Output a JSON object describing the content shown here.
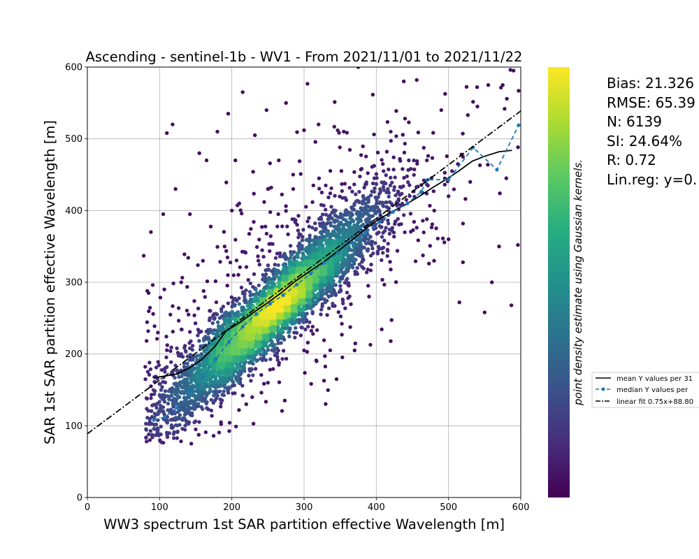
{
  "chart_data": {
    "type": "scatter",
    "title": "Ascending - sentinel-1b - WV1 - From 2021/11/01 to 2021/11/22",
    "xlabel": "WW3 spectrum 1st SAR partition effective Wavelength [m]",
    "ylabel": "SAR 1st SAR partition effective Wavelength [m]",
    "xlim": [
      0,
      600
    ],
    "ylim": [
      0,
      600
    ],
    "x_ticks": [
      "0",
      "100",
      "200",
      "300",
      "400",
      "500",
      "600"
    ],
    "y_ticks": [
      "0",
      "100",
      "200",
      "300",
      "400",
      "500",
      "600"
    ],
    "grid": true,
    "colorbar": {
      "label": "point density estimate using Gaussian kernels.",
      "colormap": "viridis",
      "colors": [
        "#440154",
        "#472d7b",
        "#3b528b",
        "#2c728e",
        "#21918c",
        "#28ae80",
        "#5ec962",
        "#addc30",
        "#fde725"
      ]
    },
    "point_count": 6139,
    "point_cloud": {
      "description_points": [
        [
          82,
          78
        ],
        [
          85,
          88
        ],
        [
          78,
          337
        ],
        [
          88,
          370
        ],
        [
          110,
          508
        ],
        [
          105,
          395
        ],
        [
          122,
          430
        ],
        [
          118,
          520
        ],
        [
          165,
          470
        ],
        [
          142,
          395
        ],
        [
          155,
          480
        ],
        [
          180,
          510
        ],
        [
          195,
          535
        ],
        [
          215,
          565
        ],
        [
          205,
          470
        ],
        [
          232,
          505
        ],
        [
          248,
          540
        ],
        [
          265,
          470
        ],
        [
          275,
          550
        ],
        [
          300,
          512
        ],
        [
          320,
          520
        ],
        [
          355,
          510
        ],
        [
          375,
          600
        ],
        [
          420,
          510
        ],
        [
          438,
          580
        ],
        [
          456,
          582
        ],
        [
          490,
          540
        ],
        [
          520,
          475
        ],
        [
          540,
          545
        ],
        [
          555,
          575
        ],
        [
          575,
          575
        ],
        [
          590,
          595
        ],
        [
          597,
          567
        ],
        [
          596,
          352
        ],
        [
          587,
          268
        ],
        [
          570,
          350
        ],
        [
          560,
          300
        ],
        [
          520,
          328
        ],
        [
          515,
          272
        ],
        [
          550,
          258
        ],
        [
          470,
          388
        ],
        [
          420,
          218
        ],
        [
          402,
          340
        ],
        [
          390,
          280
        ],
        [
          345,
          165
        ],
        [
          370,
          205
        ],
        [
          300,
          205
        ],
        [
          250,
          160
        ],
        [
          220,
          130
        ],
        [
          185,
          105
        ],
        [
          150,
          95
        ],
        [
          140,
          103
        ],
        [
          125,
          92
        ],
        [
          160,
          175
        ],
        [
          170,
          150
        ],
        [
          130,
          200
        ],
        [
          480,
          330
        ],
        [
          500,
          360
        ],
        [
          505,
          455
        ],
        [
          530,
          440
        ],
        [
          580,
          445
        ],
        [
          500,
          420
        ],
        [
          470,
          470
        ],
        [
          445,
          470
        ],
        [
          410,
          455
        ],
        [
          330,
          435
        ],
        [
          285,
          430
        ],
        [
          250,
          430
        ],
        [
          200,
          400
        ],
        [
          190,
          350
        ],
        [
          160,
          330
        ],
        [
          130,
          300
        ],
        [
          115,
          255
        ],
        [
          140,
          255
        ],
        [
          170,
          250
        ]
      ]
    },
    "series": [
      {
        "name": "mean Y values per 31",
        "style": "solid",
        "color": "#000000",
        "x": [
          92,
          106,
          123,
          140,
          158,
          176,
          192,
          211,
          230,
          249,
          268,
          287,
          306,
          325,
          345,
          364,
          383,
          402,
          421,
          440,
          460,
          478,
          496,
          514,
          533,
          551,
          570,
          588
        ],
        "y": [
          167,
          169,
          172,
          180,
          192,
          210,
          232,
          244,
          258,
          271,
          285,
          301,
          314,
          327,
          342,
          357,
          373,
          387,
          398,
          408,
          420,
          432,
          443,
          455,
          469,
          476,
          482,
          484
        ]
      },
      {
        "name": "median Y values per",
        "style": "dashed-markers",
        "color": "#1f77b4",
        "x": [
          92,
          107,
          124,
          142,
          160,
          178,
          196,
          215,
          234,
          253,
          271,
          290,
          309,
          328,
          347,
          366,
          385,
          404,
          423,
          443,
          462,
          471,
          500,
          534,
          567,
          597
        ],
        "y": [
          108,
          112,
          125,
          145,
          168,
          193,
          217,
          238,
          256,
          270,
          282,
          297,
          312,
          327,
          341,
          355,
          369,
          384,
          398,
          410,
          426,
          443,
          443,
          488,
          457,
          519
        ]
      },
      {
        "name": "linear fit 0.75x+88.80",
        "style": "dashdot",
        "color": "#000000",
        "x": [
          0,
          600
        ],
        "y": [
          88.8,
          538.8
        ]
      }
    ],
    "stats": {
      "bias": "Bias: 21.326",
      "rmse": "RMSE: 65.39",
      "n": "N: 6139",
      "si": "SI: 24.64%",
      "r": "R: 0.72",
      "linreg": "Lin.reg: y=0."
    },
    "legend_placement": "right, partially cut off"
  }
}
